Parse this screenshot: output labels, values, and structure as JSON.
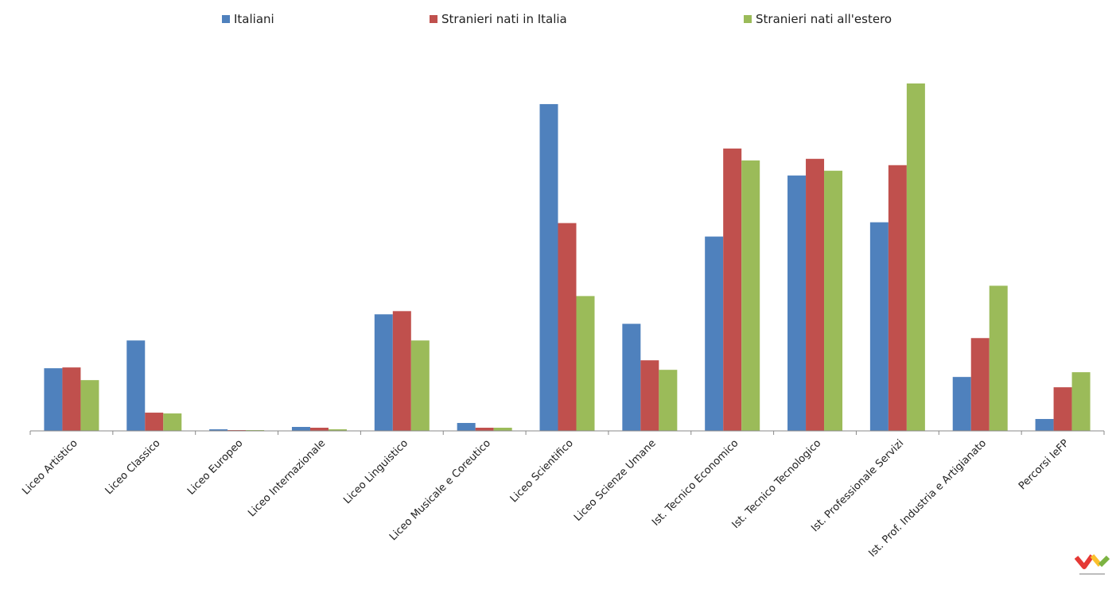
{
  "chart_data": {
    "type": "bar",
    "categories": [
      "Liceo Artistico",
      "Liceo Classico",
      "Liceo Europeo",
      "Liceo Internazionale",
      "Liceo Linguistico",
      "Liceo Musicale e Coreutico",
      "Liceo Scientifico",
      "Liceo Scienze Umane",
      "Ist. Tecnico Economico",
      "Ist. Tecnico Tecnologico",
      "Ist. Professionale Servizi",
      "Ist. Prof. Industria e Artigianato",
      "Percorsi IeFP"
    ],
    "series": [
      {
        "name": "Italiani",
        "color": "#4f81bd",
        "values": [
          79,
          114,
          2,
          5,
          147,
          10,
          412,
          135,
          245,
          322,
          263,
          68,
          15
        ]
      },
      {
        "name": "Stranieri nati in Italia",
        "color": "#c0504d",
        "values": [
          80,
          23,
          1,
          4,
          151,
          4,
          262,
          89,
          356,
          343,
          335,
          117,
          55
        ]
      },
      {
        "name": "Stranieri nati all'estero",
        "color": "#9bbb59",
        "values": [
          64,
          22,
          1,
          2,
          114,
          4,
          170,
          77,
          341,
          328,
          438,
          183,
          74
        ]
      }
    ],
    "ylim": [
      0,
      440
    ],
    "grid": false,
    "legend_position": "top"
  },
  "logo": {
    "icon": "vertex-chevron-logo",
    "colors": [
      "#e53935",
      "#fbc02d",
      "#7cb342"
    ]
  }
}
